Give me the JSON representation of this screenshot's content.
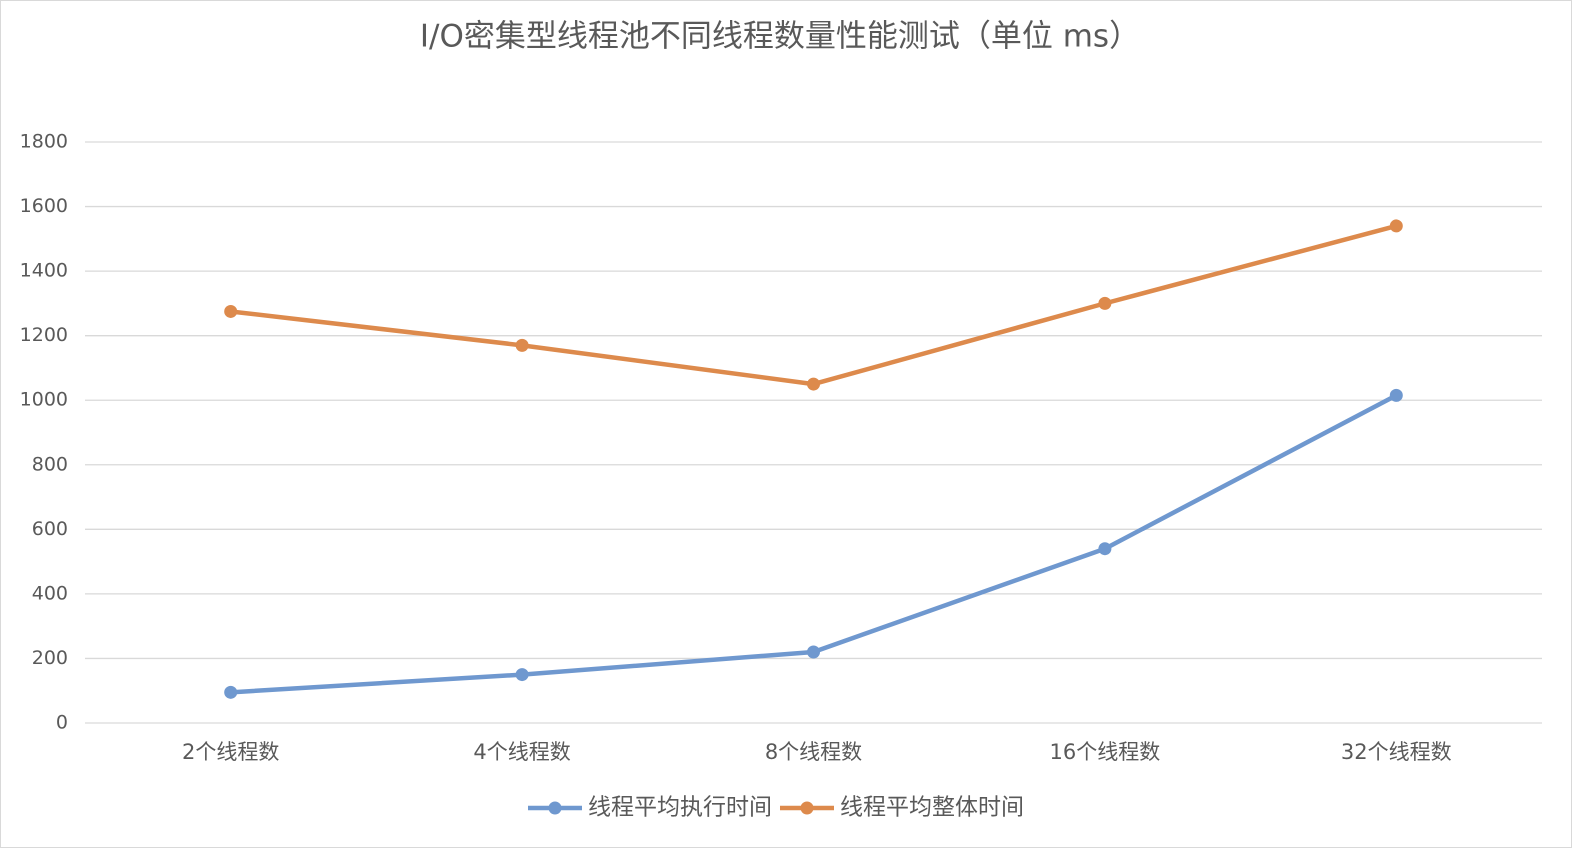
{
  "chart_data": {
    "type": "line",
    "title": "I/O密集型线程池不同线程数量性能测试（单位 ms）",
    "categories": [
      "2个线程数",
      "4个线程数",
      "8个线程数",
      "16个线程数",
      "32个线程数"
    ],
    "series": [
      {
        "name": "线程平均执行时间",
        "color": "#6f98cf",
        "values": [
          95,
          150,
          220,
          540,
          1015
        ]
      },
      {
        "name": "线程平均整体时间",
        "color": "#dd8a4c",
        "values": [
          1275,
          1170,
          1050,
          1300,
          1540
        ]
      }
    ],
    "ylim": [
      0,
      1800
    ],
    "yticks": [
      0,
      200,
      400,
      600,
      800,
      1000,
      1200,
      1400,
      1600,
      1800
    ],
    "grid": true,
    "legend": "bottom"
  }
}
